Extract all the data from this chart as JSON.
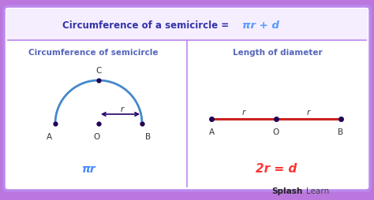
{
  "bg_color": "#cc88ee",
  "panel_color": "#ffffff",
  "panel_inner_color": "#faf5ff",
  "border_color": "#bb88ee",
  "title_text": "Circumference of a semicircle =",
  "title_formula": "πr + d",
  "title_color": "#3333aa",
  "formula_color": "#5599ff",
  "left_title": "Circumference of semicircle",
  "right_title": "Length of diameter",
  "subtitle_color": "#5566bb",
  "left_formula": "πr",
  "left_formula_color": "#4488ff",
  "right_formula": "2r = d",
  "right_formula_color": "#ff3333",
  "semicircle_color": "#4488cc",
  "diameter_color": "#cc2222",
  "arrow_color": "#220066",
  "dot_color": "#220055",
  "splash_bold_color": "#222222",
  "splash_normal_color": "#444444",
  "outer_bg": "#bb77dd"
}
